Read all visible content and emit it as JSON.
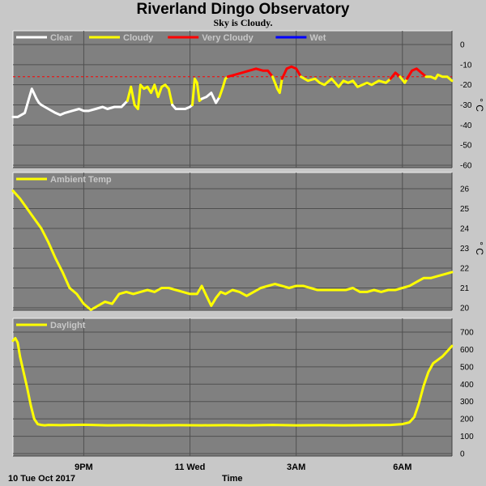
{
  "title": "Riverland Dingo Observatory",
  "subtitle": "Sky is Cloudy.",
  "footer": {
    "date_label": "10 Tue Oct 2017",
    "time_label": "Time"
  },
  "chart_data": [
    {
      "id": "sky",
      "type": "line",
      "yunit": "°C",
      "ylim": [
        -60,
        0
      ],
      "yticks": [
        0,
        -10,
        -20,
        -30,
        -40,
        -50,
        -60
      ],
      "legend": [
        {
          "name": "Clear",
          "color": "#ffffff"
        },
        {
          "name": "Cloudy",
          "color": "#ffff00"
        },
        {
          "name": "Very Cloudy",
          "color": "#ff0000"
        },
        {
          "name": "Wet",
          "color": "#0000ff"
        }
      ],
      "threshold": -16,
      "threshold_color": "#ff0000",
      "segments": [
        {
          "color": "#ffffff",
          "x": [
            0,
            0.2,
            0.5,
            0.8,
            1.0,
            1.1,
            1.2,
            1.5,
            1.8,
            2.0,
            2.2,
            2.5,
            2.8,
            3.0,
            3.2,
            3.5,
            3.8,
            4.0,
            4.3,
            4.6,
            4.85
          ],
          "y": [
            -36,
            -36,
            -34,
            -22,
            -27,
            -29,
            -30,
            -32,
            -34,
            -35,
            -34,
            -33,
            -32,
            -33,
            -33,
            -32,
            -31,
            -32,
            -31,
            -31,
            -28
          ]
        },
        {
          "color": "#ffff00",
          "x": [
            4.85,
            5.0,
            5.15,
            5.3,
            5.4,
            5.55,
            5.7,
            5.85,
            6.0,
            6.15,
            6.3,
            6.45,
            6.6,
            6.75
          ],
          "y": [
            -28,
            -21,
            -30,
            -32,
            -20,
            -22,
            -21,
            -24,
            -20,
            -26,
            -21,
            -20,
            -22,
            -30
          ]
        },
        {
          "color": "#ffffff",
          "x": [
            6.75,
            6.9,
            7.1,
            7.3,
            7.5,
            7.6
          ],
          "y": [
            -30,
            -32,
            -32,
            -32,
            -31,
            -30
          ]
        },
        {
          "color": "#ffff00",
          "x": [
            7.6,
            7.7,
            7.8,
            7.9,
            8.0
          ],
          "y": [
            -30,
            -17,
            -19,
            -28,
            -27
          ]
        },
        {
          "color": "#ffffff",
          "x": [
            8.0,
            8.2,
            8.4,
            8.6,
            8.75
          ],
          "y": [
            -27,
            -26,
            -24,
            -29,
            -26
          ]
        },
        {
          "color": "#ffff00",
          "x": [
            8.75,
            8.9,
            9.0,
            9.1
          ],
          "y": [
            -26,
            -21,
            -17,
            -16
          ]
        },
        {
          "color": "#ff0000",
          "x": [
            9.1,
            9.4,
            9.7,
            10.0,
            10.3,
            10.6,
            10.8,
            11.0
          ],
          "y": [
            -16,
            -15,
            -14,
            -13,
            -12,
            -13,
            -13,
            -16
          ]
        },
        {
          "color": "#ffff00",
          "x": [
            11.0,
            11.2,
            11.3,
            11.4
          ],
          "y": [
            -16,
            -22,
            -24,
            -17
          ]
        },
        {
          "color": "#ff0000",
          "x": [
            11.4,
            11.6,
            11.8,
            12.0,
            12.2
          ],
          "y": [
            -17,
            -12,
            -11,
            -12,
            -16
          ]
        },
        {
          "color": "#ffff00",
          "x": [
            12.2,
            12.5,
            12.8,
            13.0,
            13.2,
            13.5,
            13.8,
            14.0,
            14.2,
            14.4,
            14.6,
            14.8,
            15.0,
            15.2,
            15.5,
            15.8,
            16.0
          ],
          "y": [
            -16,
            -18,
            -17,
            -19,
            -20,
            -17,
            -21,
            -18,
            -19,
            -18,
            -21,
            -20,
            -19,
            -20,
            -18,
            -19,
            -17
          ]
        },
        {
          "color": "#ff0000",
          "x": [
            16.0,
            16.2,
            16.4
          ],
          "y": [
            -17,
            -14,
            -16
          ]
        },
        {
          "color": "#ffff00",
          "x": [
            16.4,
            16.6,
            16.7
          ],
          "y": [
            -16,
            -19,
            -17
          ]
        },
        {
          "color": "#ff0000",
          "x": [
            16.7,
            16.9,
            17.1,
            17.3,
            17.5
          ],
          "y": [
            -17,
            -13,
            -12,
            -14,
            -16
          ]
        },
        {
          "color": "#ffff00",
          "x": [
            17.5,
            17.7,
            17.9,
            18.0,
            18.2,
            18.4,
            18.6
          ],
          "y": [
            -16,
            -16,
            -17,
            -15,
            -16,
            -16,
            -18
          ]
        }
      ]
    },
    {
      "id": "ambient",
      "type": "line",
      "yunit": "°C",
      "ylim": [
        19.5,
        26.5
      ],
      "yticks": [
        26,
        25,
        24,
        23,
        22,
        21,
        20
      ],
      "legend": [
        {
          "name": "Ambient Temp",
          "color": "#ffff00"
        }
      ],
      "series": [
        {
          "name": "Ambient Temp",
          "color": "#ffff00",
          "x": [
            0,
            0.3,
            0.6,
            0.9,
            1.2,
            1.5,
            1.8,
            2.1,
            2.4,
            2.7,
            3.0,
            3.3,
            3.6,
            3.9,
            4.2,
            4.5,
            4.8,
            5.1,
            5.4,
            5.7,
            6.0,
            6.3,
            6.6,
            6.9,
            7.2,
            7.5,
            7.8,
            8.0,
            8.2,
            8.4,
            8.6,
            8.8,
            9.0,
            9.3,
            9.6,
            9.9,
            10.2,
            10.5,
            10.8,
            11.1,
            11.4,
            11.7,
            12.0,
            12.3,
            12.6,
            12.9,
            13.2,
            13.5,
            13.8,
            14.1,
            14.4,
            14.7,
            15.0,
            15.3,
            15.6,
            15.9,
            16.2,
            16.5,
            16.8,
            17.1,
            17.4,
            17.7,
            18.0,
            18.3,
            18.6
          ],
          "y": [
            25.9,
            25.5,
            25.0,
            24.5,
            24.0,
            23.3,
            22.5,
            21.8,
            21.0,
            20.7,
            20.2,
            19.9,
            20.1,
            20.3,
            20.2,
            20.7,
            20.8,
            20.7,
            20.8,
            20.9,
            20.8,
            21.0,
            21.0,
            20.9,
            20.8,
            20.7,
            20.7,
            21.1,
            20.6,
            20.1,
            20.5,
            20.8,
            20.7,
            20.9,
            20.8,
            20.6,
            20.8,
            21.0,
            21.1,
            21.2,
            21.1,
            21.0,
            21.1,
            21.1,
            21.0,
            20.9,
            20.9,
            20.9,
            20.9,
            20.9,
            21.0,
            20.8,
            20.8,
            20.9,
            20.8,
            20.9,
            20.9,
            21.0,
            21.1,
            21.3,
            21.5,
            21.5,
            21.6,
            21.7,
            21.8
          ]
        }
      ]
    },
    {
      "id": "daylight",
      "type": "line",
      "yunit": "",
      "ylim": [
        0,
        700
      ],
      "yticks": [
        700,
        600,
        500,
        400,
        300,
        200,
        100,
        0
      ],
      "legend": [
        {
          "name": "Daylight",
          "color": "#ffff00"
        }
      ],
      "series": [
        {
          "name": "Daylight",
          "color": "#ffff00",
          "x": [
            0,
            0.1,
            0.2,
            0.3,
            0.45,
            0.6,
            0.75,
            0.9,
            1.05,
            1.2,
            1.35,
            1.5,
            2.0,
            3.0,
            4.0,
            5.0,
            6.0,
            7.0,
            8.0,
            9.0,
            10.0,
            11.0,
            12.0,
            13.0,
            14.0,
            15.0,
            16.0,
            16.5,
            16.8,
            17.0,
            17.2,
            17.4,
            17.6,
            17.8,
            18.0,
            18.2,
            18.4,
            18.6
          ],
          "y": [
            650,
            665,
            640,
            560,
            470,
            380,
            280,
            200,
            170,
            165,
            163,
            165,
            164,
            166,
            163,
            164,
            163,
            164,
            163,
            164,
            163,
            165,
            163,
            164,
            163,
            164,
            165,
            170,
            180,
            210,
            290,
            390,
            470,
            520,
            540,
            560,
            590,
            620
          ]
        }
      ]
    }
  ],
  "x_axis": {
    "domain": [
      0,
      18.6
    ],
    "ticks": [
      {
        "x": 3.0,
        "label": "9PM"
      },
      {
        "x": 7.5,
        "label": "11 Wed"
      },
      {
        "x": 12.0,
        "label": "3AM"
      },
      {
        "x": 16.5,
        "label": "6AM"
      }
    ]
  }
}
